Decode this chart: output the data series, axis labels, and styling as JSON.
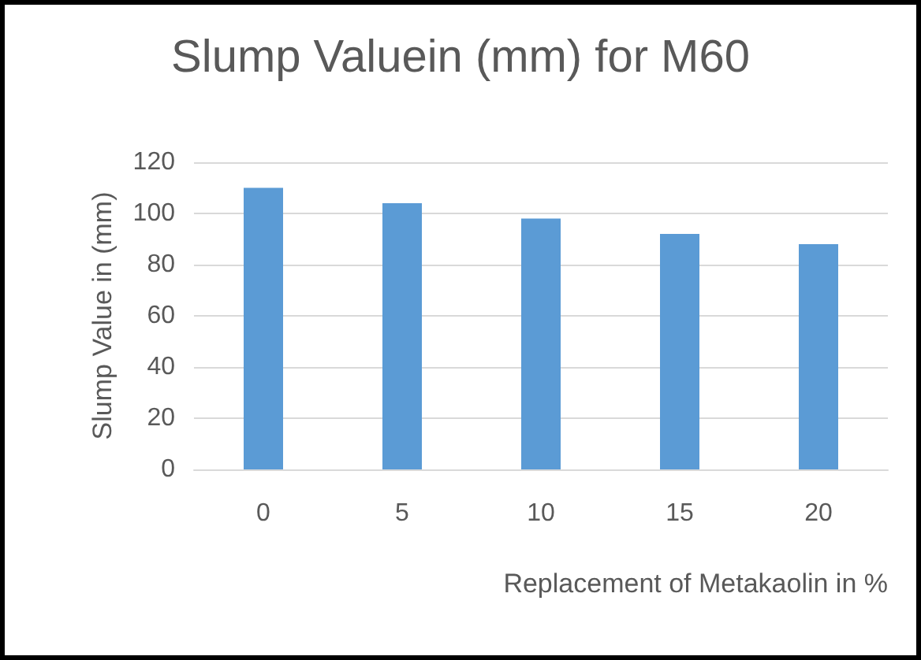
{
  "chart_data": {
    "type": "bar",
    "title": "Slump Valuein (mm) for M60",
    "xlabel": "Replacement of Metakaolin in %",
    "ylabel": "Slump Value in (mm)",
    "categories": [
      "0",
      "5",
      "10",
      "15",
      "20"
    ],
    "values": [
      110,
      104,
      98,
      92,
      88
    ],
    "color": "#5b9bd5",
    "ylim": [
      0,
      120
    ],
    "yticks": [
      0,
      20,
      40,
      60,
      80,
      100,
      120
    ],
    "grid": "y"
  }
}
